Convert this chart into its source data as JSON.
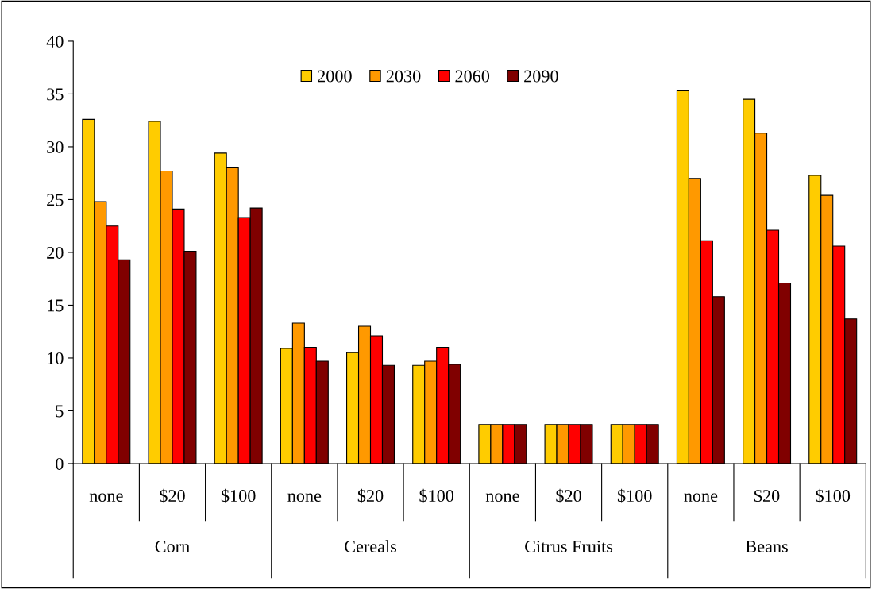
{
  "chart_data": {
    "type": "bar",
    "categories": [
      "none",
      "$20",
      "$100",
      "none",
      "$20",
      "$100",
      "none",
      "$20",
      "$100",
      "none",
      "$20",
      "$100"
    ],
    "annotations": [
      "Corn",
      "Cereals",
      "Citrus Fruits",
      "Beans"
    ],
    "series": [
      {
        "name": "2000",
        "color": "#ffcc00",
        "values": [
          32.6,
          32.4,
          29.4,
          10.9,
          10.5,
          9.3,
          3.7,
          3.7,
          3.7,
          35.3,
          34.5,
          27.3
        ]
      },
      {
        "name": "2030",
        "color": "#ff9900",
        "values": [
          24.8,
          27.7,
          28.0,
          13.3,
          13.0,
          9.7,
          3.7,
          3.7,
          3.7,
          27.0,
          31.3,
          25.4
        ]
      },
      {
        "name": "2060",
        "color": "#ff0000",
        "values": [
          22.5,
          24.1,
          23.3,
          11.0,
          12.1,
          11.0,
          3.7,
          3.7,
          3.7,
          21.1,
          22.1,
          20.6
        ]
      },
      {
        "name": "2090",
        "color": "#800000",
        "values": [
          19.3,
          20.1,
          24.2,
          9.7,
          9.3,
          9.4,
          3.7,
          3.7,
          3.7,
          15.8,
          17.1,
          13.7
        ]
      }
    ],
    "ylim": [
      0,
      40
    ],
    "yticks": [
      0,
      5,
      10,
      15,
      20,
      25,
      30,
      35,
      40
    ],
    "grid": false,
    "legend": "top"
  }
}
